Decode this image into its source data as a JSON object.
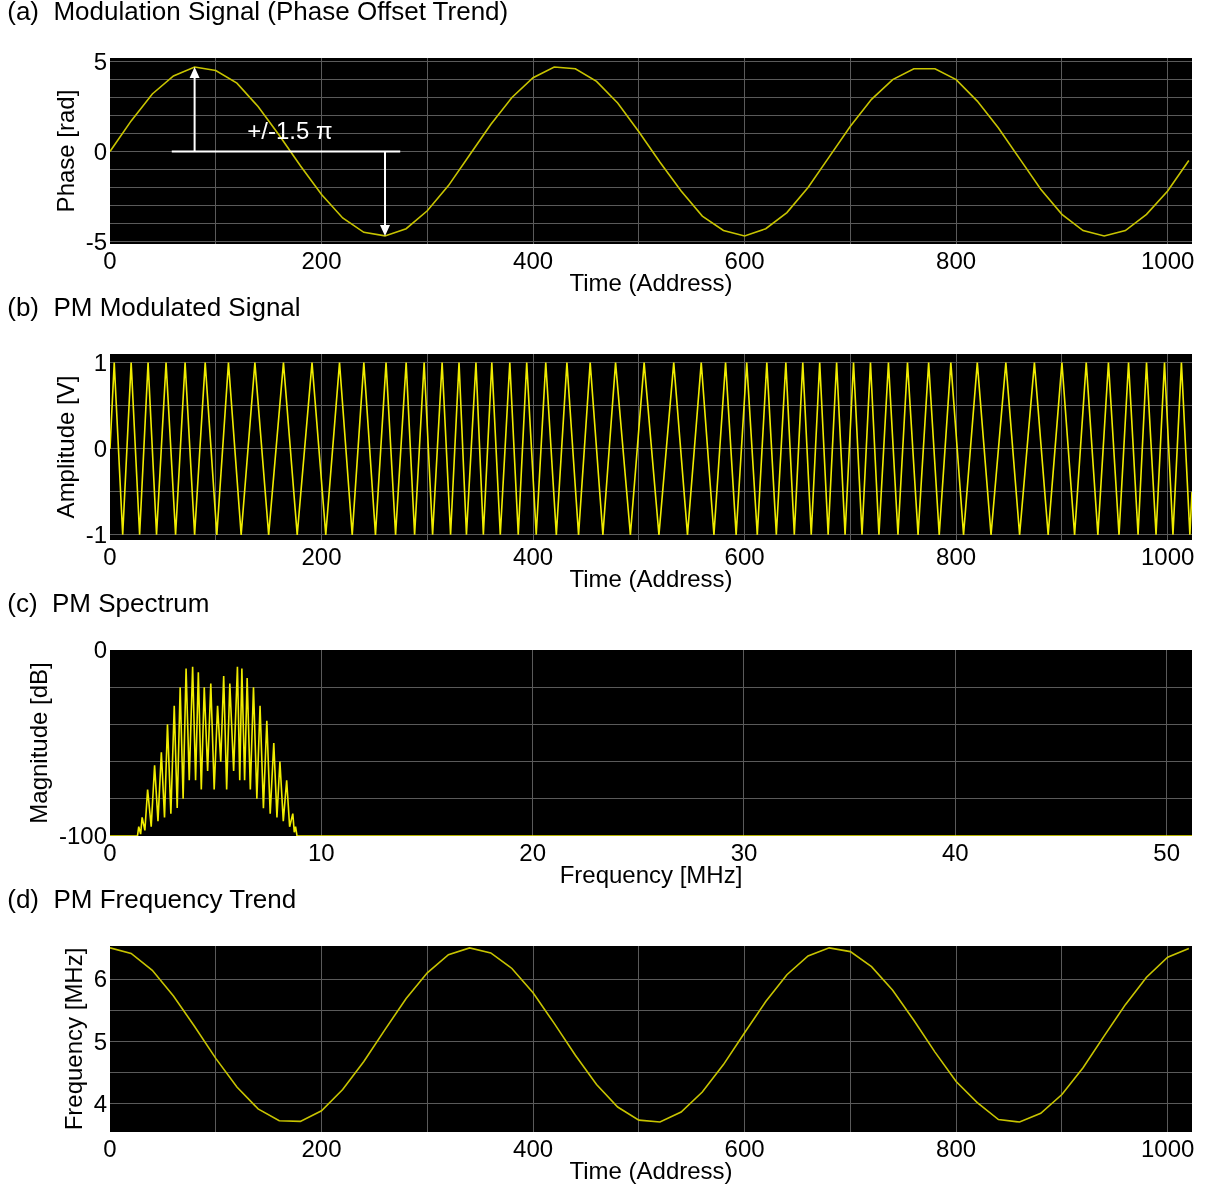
{
  "chart_data": [
    {
      "type": "line",
      "title": "(a)  Modulation Signal (Phase Offset Trend)",
      "xlabel": "Time (Address)",
      "ylabel": "Phase [rad]",
      "annotations": [
        "+/-1.5 π"
      ],
      "xlim": [
        0,
        1023
      ],
      "ylim": [
        -5.15,
        5.2
      ],
      "xticks": [
        0,
        {
          "value": 100,
          "label": null
        },
        200,
        {
          "value": 300,
          "label": null
        },
        400,
        {
          "value": 500,
          "label": null
        },
        600,
        {
          "value": 700,
          "label": null
        },
        800,
        {
          "value": 900,
          "label": null
        },
        1000
      ],
      "yticks": [
        -5,
        {
          "value": -4,
          "label": null
        },
        {
          "value": -3,
          "label": null
        },
        {
          "value": -2,
          "label": null
        },
        {
          "value": -1,
          "label": null
        },
        0,
        {
          "value": 1,
          "label": null
        },
        {
          "value": 2,
          "label": null
        },
        {
          "value": 3,
          "label": null
        },
        {
          "value": 4,
          "label": null
        },
        5
      ],
      "grid": true,
      "series": [
        {
          "color": "#c8c400",
          "x": [
            0,
            20,
            40,
            60,
            80,
            100,
            120,
            140,
            160,
            180,
            200,
            220,
            240,
            260,
            280,
            300,
            320,
            340,
            360,
            380,
            400,
            420,
            440,
            460,
            480,
            500,
            520,
            540,
            560,
            580,
            600,
            620,
            640,
            660,
            680,
            700,
            720,
            740,
            760,
            780,
            800,
            820,
            840,
            860,
            880,
            900,
            920,
            940,
            960,
            980,
            1000,
            1020
          ],
          "values": [
            0,
            1.7,
            3.2,
            4.2,
            4.7,
            4.5,
            3.8,
            2.5,
            0.9,
            -0.8,
            -2.4,
            -3.7,
            -4.5,
            -4.7,
            -4.3,
            -3.3,
            -1.9,
            -0.2,
            1.5,
            3.0,
            4.1,
            4.7,
            4.6,
            3.9,
            2.7,
            1.1,
            -0.6,
            -2.2,
            -3.6,
            -4.4,
            -4.7,
            -4.3,
            -3.4,
            -2.0,
            -0.3,
            1.4,
            2.9,
            4.0,
            4.6,
            4.6,
            4.0,
            2.8,
            1.3,
            -0.4,
            -2.1,
            -3.5,
            -4.4,
            -4.7,
            -4.4,
            -3.5,
            -2.2,
            -0.5
          ]
        }
      ]
    },
    {
      "type": "line",
      "title": "(b)  PM Modulated Signal",
      "xlabel": "Time (Address)",
      "ylabel": "Amplitude [V]",
      "xlim": [
        0,
        1023
      ],
      "ylim": [
        -1.06,
        1.1
      ],
      "xticks": [
        0,
        {
          "value": 100,
          "label": null
        },
        200,
        {
          "value": 300,
          "label": null
        },
        400,
        {
          "value": 500,
          "label": null
        },
        600,
        {
          "value": 700,
          "label": null
        },
        800,
        {
          "value": 900,
          "label": null
        },
        1000
      ],
      "yticks": [
        -1,
        {
          "value": -0.5,
          "label": null
        },
        0,
        {
          "value": 0.5,
          "label": null
        },
        1
      ],
      "grid": true,
      "series": [
        {
          "color": "#f0ec00",
          "x": [
            0,
            4,
            12,
            20,
            28,
            36,
            44,
            53,
            62,
            71,
            80,
            90,
            101,
            112,
            124,
            137,
            150,
            164,
            177,
            191,
            204,
            217,
            229,
            240,
            251,
            261,
            270,
            280,
            288,
            297,
            305,
            314,
            322,
            330,
            337,
            346,
            353,
            361,
            369,
            378,
            386,
            394,
            403,
            412,
            422,
            432,
            443,
            454,
            466,
            478,
            492,
            505,
            519,
            533,
            546,
            559,
            571,
            582,
            592,
            602,
            612,
            621,
            630,
            639,
            647,
            655,
            663,
            671,
            679,
            687,
            695,
            703,
            711,
            719,
            727,
            736,
            745,
            754,
            764,
            774,
            784,
            795,
            807,
            820,
            833,
            847,
            860,
            874,
            887,
            900,
            912,
            923,
            934,
            944,
            954,
            963,
            972,
            980,
            989,
            997,
            1005,
            1013,
            1021,
            1023
          ],
          "values": [
            0,
            1,
            -1,
            1,
            -1,
            1,
            -1,
            1,
            -1,
            1,
            -1,
            1,
            -1,
            1,
            -1,
            1,
            -1,
            1,
            -1,
            1,
            -1,
            1,
            -1,
            1,
            -1,
            1,
            -1,
            1,
            -1,
            1,
            -1,
            1,
            -1,
            1,
            -1,
            1,
            -1,
            1,
            -1,
            1,
            -1,
            1,
            -1,
            1,
            -1,
            1,
            -1,
            1,
            -1,
            1,
            -1,
            1,
            -1,
            1,
            -1,
            1,
            -1,
            1,
            -1,
            1,
            -1,
            1,
            -1,
            1,
            -1,
            1,
            -1,
            1,
            -1,
            1,
            -1,
            1,
            -1,
            1,
            -1,
            1,
            -1,
            1,
            -1,
            1,
            -1,
            1,
            -1,
            1,
            -1,
            1,
            -1,
            1,
            -1,
            1,
            -1,
            1,
            -1,
            1,
            -1,
            1,
            -1,
            1,
            -1,
            1,
            -1,
            1,
            -1,
            -0.5
          ]
        }
      ]
    },
    {
      "type": "line",
      "title": "(c)  PM Spectrum",
      "xlabel": "Frequency [MHz]",
      "ylabel": "Magnitude [dB]",
      "xlim": [
        0,
        51.2
      ],
      "ylim": [
        -100,
        0
      ],
      "xticks": [
        0,
        10,
        20,
        30,
        40,
        50
      ],
      "yticks": [
        -100,
        {
          "value": -80,
          "label": null
        },
        {
          "value": -60,
          "label": null
        },
        {
          "value": -40,
          "label": null
        },
        {
          "value": -20,
          "label": null
        },
        0
      ],
      "grid": true,
      "series": [
        {
          "color": "#f0ec00",
          "x": [
            0,
            1.3,
            1.36,
            1.45,
            1.52,
            1.65,
            1.78,
            1.95,
            2.11,
            2.27,
            2.43,
            2.58,
            2.72,
            2.88,
            3.04,
            3.18,
            3.32,
            3.46,
            3.6,
            3.75,
            3.91,
            4.05,
            4.18,
            4.32,
            4.46,
            4.62,
            4.77,
            4.93,
            5.09,
            5.24,
            5.38,
            5.52,
            5.67,
            5.85,
            6.03,
            6.14,
            6.24,
            6.37,
            6.49,
            6.64,
            6.79,
            6.95,
            7.1,
            7.26,
            7.42,
            7.58,
            7.75,
            7.9,
            8.04,
            8.2,
            8.36,
            8.5,
            8.65,
            8.72,
            8.78,
            8.85,
            51.2
          ],
          "values": [
            -100,
            -100,
            -95,
            -99,
            -90,
            -97,
            -75,
            -95,
            -62,
            -92,
            -55,
            -90,
            -40,
            -88,
            -30,
            -85,
            -20,
            -80,
            -10,
            -70,
            -9,
            -70,
            -12,
            -75,
            -20,
            -65,
            -18,
            -75,
            -30,
            -60,
            -14,
            -75,
            -18,
            -65,
            -9,
            -70,
            -10,
            -70,
            -15,
            -75,
            -20,
            -80,
            -30,
            -85,
            -38,
            -88,
            -50,
            -90,
            -60,
            -92,
            -70,
            -95,
            -88,
            -98,
            -95,
            -100,
            -100
          ]
        }
      ]
    },
    {
      "type": "line",
      "title": "(d)  PM Frequency Trend",
      "xlabel": "Time (Address)",
      "ylabel": "Frequency [MHz]",
      "xlim": [
        0,
        1023
      ],
      "ylim": [
        3.55,
        6.53
      ],
      "xticks": [
        0,
        {
          "value": 100,
          "label": null
        },
        200,
        {
          "value": 300,
          "label": null
        },
        400,
        {
          "value": 500,
          "label": null
        },
        600,
        {
          "value": 700,
          "label": null
        },
        800,
        {
          "value": 900,
          "label": null
        },
        1000
      ],
      "yticks": [
        4,
        {
          "value": 4.5,
          "label": null
        },
        5,
        {
          "value": 5.5,
          "label": null
        },
        6
      ],
      "grid": true,
      "series": [
        {
          "color": "#c8c400",
          "x": [
            0,
            20,
            40,
            60,
            80,
            100,
            120,
            140,
            160,
            180,
            200,
            220,
            240,
            260,
            280,
            300,
            320,
            340,
            360,
            380,
            400,
            420,
            440,
            460,
            480,
            500,
            520,
            540,
            560,
            580,
            600,
            620,
            640,
            660,
            680,
            700,
            720,
            740,
            760,
            780,
            800,
            820,
            840,
            860,
            880,
            900,
            920,
            940,
            960,
            980,
            1000,
            1020
          ],
          "values": [
            6.5,
            6.41,
            6.14,
            5.73,
            5.24,
            4.73,
            4.27,
            3.92,
            3.73,
            3.72,
            3.89,
            4.23,
            4.68,
            5.19,
            5.69,
            6.1,
            6.39,
            6.5,
            6.42,
            6.17,
            5.78,
            5.29,
            4.78,
            4.31,
            3.95,
            3.74,
            3.71,
            3.87,
            4.19,
            4.63,
            5.14,
            5.64,
            6.07,
            6.37,
            6.5,
            6.44,
            6.2,
            5.82,
            5.34,
            4.83,
            4.36,
            4.02,
            3.75,
            3.71,
            3.85,
            4.15,
            4.58,
            5.09,
            5.59,
            6.03,
            6.35,
            6.49
          ]
        }
      ]
    }
  ]
}
